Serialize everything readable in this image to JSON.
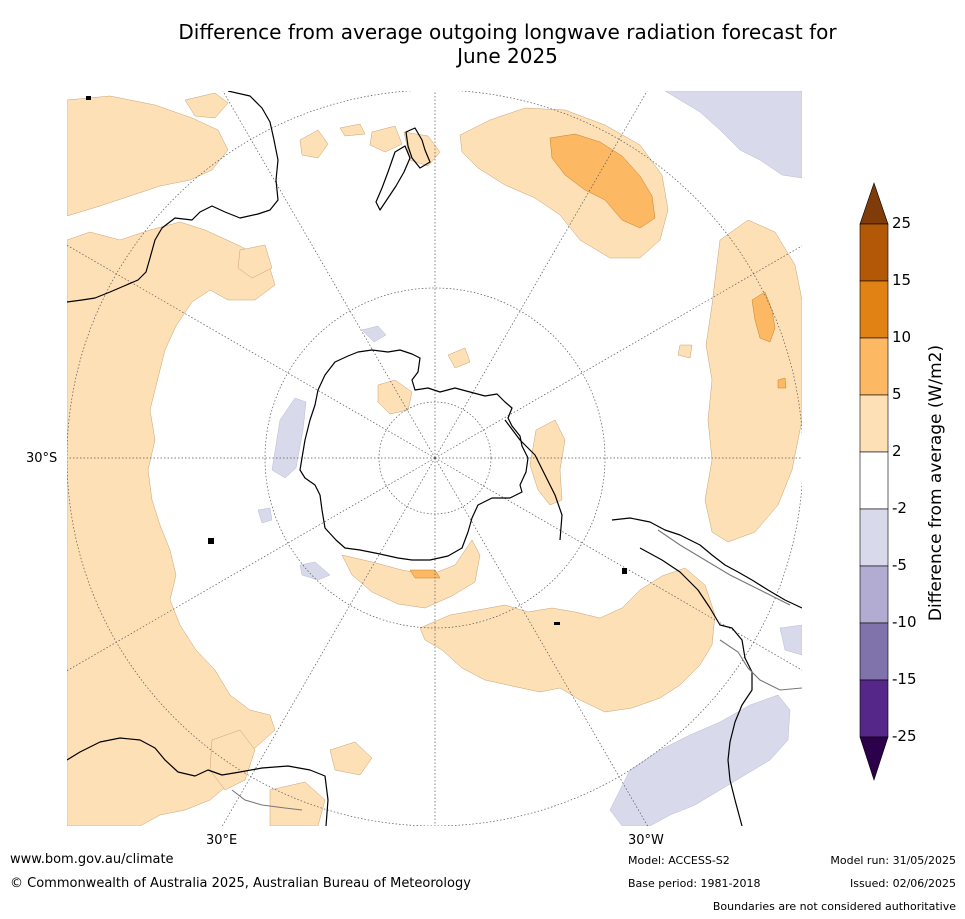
{
  "title_line1": "Difference from average outgoing longwave radiation forecast for",
  "title_line2": "June 2025",
  "axis_labels": {
    "lat_30s": "30°S",
    "lon_30e": "30°E",
    "lon_30w": "30°W"
  },
  "colorbar": {
    "label": "Difference from average (W/m2)",
    "ticks": [
      "25",
      "15",
      "10",
      "5",
      "2",
      "-2",
      "-5",
      "-10",
      "-15",
      "-25"
    ],
    "colors": {
      "above_25": "#7f3b08",
      "15_25": "#b35806",
      "10_15": "#e08214",
      "5_10": "#fdb863",
      "2_5": "#fee0b6",
      "neutral": "#ffffff",
      "m5_m2": "#d8daeb",
      "m10_m5": "#b2abd2",
      "m15_m10": "#8073ac",
      "m25_m15": "#542788",
      "below_m25": "#2d004b"
    }
  },
  "footer": {
    "url": "www.bom.gov.au/climate",
    "copyright": "© Commonwealth of Australia 2025, Australian Bureau of Meteorology",
    "model": "Model: ACCESS-S2",
    "base_period": "Base period: 1981-2018",
    "model_run": "Model run: 31/05/2025",
    "issued": "Issued: 02/06/2025",
    "boundaries": "Boundaries are not considered authoritative"
  }
}
